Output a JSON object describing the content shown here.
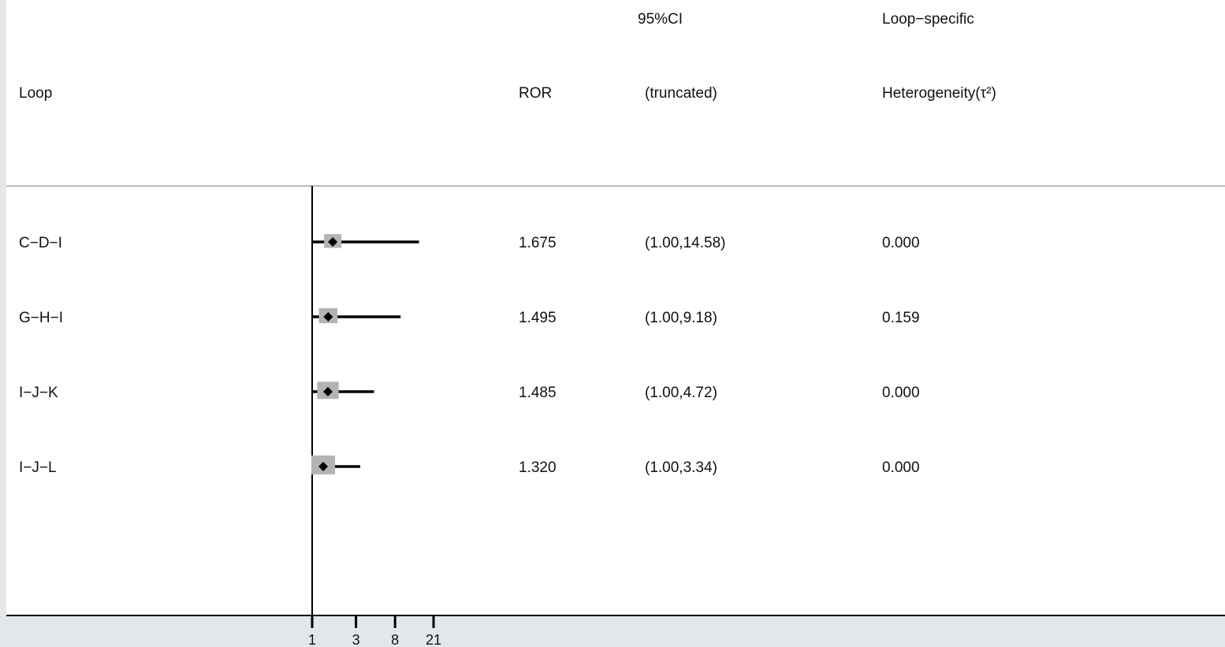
{
  "chart_data": {
    "type": "forest",
    "headers": {
      "loop": "Loop",
      "ror": "ROR",
      "ci_line1": "95%CI",
      "ci_line2": "(truncated)",
      "het_line1": "Loop−specific",
      "het_line2": "Heterogeneity(τ²)"
    },
    "rows": [
      {
        "loop": "C−D−I",
        "ror": 1.675,
        "ror_text": "1.675",
        "ci_low": 1.0,
        "ci_high": 14.58,
        "ci_text": "(1.00,14.58)",
        "tau2_text": "0.000",
        "weight": 0.55
      },
      {
        "loop": "G−H−I",
        "ror": 1.495,
        "ror_text": "1.495",
        "ci_low": 1.0,
        "ci_high": 9.18,
        "ci_text": "(1.00,9.18)",
        "tau2_text": "0.159",
        "weight": 0.65
      },
      {
        "loop": "I−J−K",
        "ror": 1.485,
        "ror_text": "1.485",
        "ci_low": 1.0,
        "ci_high": 4.72,
        "ci_text": "(1.00,4.72)",
        "tau2_text": "0.000",
        "weight": 0.85
      },
      {
        "loop": "I−J−L",
        "ror": 1.32,
        "ror_text": "1.320",
        "ci_low": 1.0,
        "ci_high": 3.34,
        "ci_text": "(1.00,3.34)",
        "tau2_text": "0.000",
        "weight": 1.0
      }
    ],
    "x_axis": {
      "scale": "log",
      "ticks": [
        1,
        3,
        8,
        21
      ],
      "tick_labels": [
        "1",
        "3",
        "8",
        "21"
      ]
    },
    "colors": {
      "box": "#b3b3b3",
      "line": "#000000",
      "divider": "#bbbbbb",
      "background": "#e2e8e9"
    }
  }
}
